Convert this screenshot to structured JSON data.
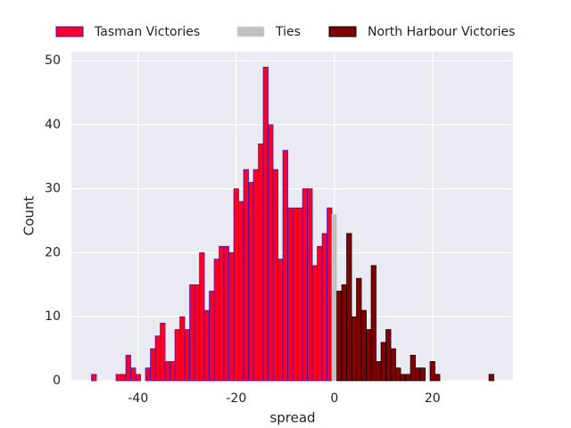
{
  "chart_data": {
    "type": "histogram",
    "xlabel": "spread",
    "ylabel": "Count",
    "xlim": [
      -53.6,
      36.4
    ],
    "ylim": [
      0,
      51.4
    ],
    "xticks": [
      -40,
      -20,
      0,
      20
    ],
    "yticks": [
      0,
      10,
      20,
      30,
      40,
      50
    ],
    "grid": true,
    "legend": "top",
    "series": [
      {
        "name": "Tasman Victories",
        "color": "#ff0022",
        "edgecolor": "#3311cc",
        "bins": [
          -49.5,
          -48.5,
          -47.5,
          -46.5,
          -45.5,
          -44.5,
          -43.5,
          -42.5,
          -41.5,
          -40.5,
          -39.5,
          -38.5,
          -37.5,
          -36.5,
          -35.5,
          -34.5,
          -33.5,
          -32.5,
          -31.5,
          -30.5,
          -29.5,
          -28.5,
          -27.5,
          -26.5,
          -25.5,
          -24.5,
          -23.5,
          -22.5,
          -21.5,
          -20.5,
          -19.5,
          -18.5,
          -17.5,
          -16.5,
          -15.5,
          -14.5,
          -13.5,
          -12.5,
          -11.5,
          -10.5,
          -9.5,
          -8.5,
          -7.5,
          -6.5,
          -5.5,
          -4.5,
          -3.5,
          -2.5,
          -1.5,
          -0.5
        ],
        "values": [
          1,
          0,
          0,
          0,
          0,
          1,
          1,
          4,
          2,
          1,
          0,
          2,
          5,
          7,
          9,
          3,
          3,
          8,
          10,
          8,
          15,
          15,
          20,
          11,
          14,
          19,
          21,
          21,
          20,
          30,
          28,
          33,
          31,
          33,
          37,
          49,
          40,
          33,
          19,
          36,
          27,
          27,
          27,
          30,
          30,
          18,
          21,
          23,
          27
        ]
      },
      {
        "name": "Ties",
        "color": "#c0c0c0",
        "edgecolor": "#dddddd",
        "bins": [
          -0.5,
          0.5
        ],
        "values": [
          26
        ]
      },
      {
        "name": "North Harbour Victories",
        "color": "#800000",
        "edgecolor": "#000000",
        "bins": [
          0.5,
          1.5,
          2.5,
          3.5,
          4.5,
          5.5,
          6.5,
          7.5,
          8.5,
          9.5,
          10.5,
          11.5,
          12.5,
          13.5,
          14.5,
          15.5,
          16.5,
          17.5,
          18.5,
          19.5,
          20.5,
          21.5,
          22.5,
          23.5,
          24.5,
          25.5,
          26.5,
          27.5,
          28.5,
          29.5,
          30.5,
          31.5,
          32.5
        ],
        "values": [
          14,
          15,
          23,
          10,
          16,
          11,
          8,
          18,
          3,
          6,
          8,
          5,
          2,
          1,
          1,
          4,
          2,
          2,
          0,
          3,
          1,
          0,
          0,
          0,
          0,
          0,
          0,
          0,
          0,
          0,
          0,
          1
        ]
      }
    ]
  }
}
